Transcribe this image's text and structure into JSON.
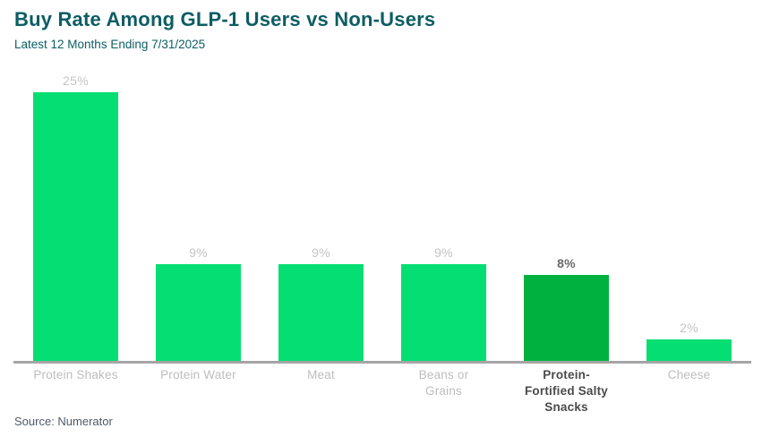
{
  "header": {
    "title": "Buy Rate Among GLP-1 Users vs Non-Users",
    "subtitle": "Latest 12 Months Ending 7/31/2025"
  },
  "footer": {
    "source": "Source: Numerator"
  },
  "colors": {
    "title_text": "#0D5D64",
    "bar_default": "#05DE72",
    "bar_emphasis": "#00B140",
    "value_label_muted": "#C4C4C4",
    "value_label_emphasis": "#6B6B6B",
    "category_label_muted": "#BDBDBD",
    "category_label_emphasis": "#4A4A4A",
    "axis_line": "#A5A5A5",
    "source_text": "#4F5A68",
    "background": "#FFFFFF"
  },
  "chart_data": {
    "type": "bar",
    "title": "Buy Rate Among GLP-1 Users vs Non-Users",
    "subtitle": "Latest 12 Months Ending 7/31/2025",
    "categories": [
      "Protein Shakes",
      "Protein Water",
      "Meat",
      "Beans or Grains",
      "Protein-Fortified Salty Snacks",
      "Cheese"
    ],
    "values": [
      25,
      9,
      9,
      9,
      8,
      2
    ],
    "value_labels": [
      "25%",
      "9%",
      "9%",
      "9%",
      "8%",
      "2%"
    ],
    "unit": "%",
    "emphasized_index": 4,
    "ylim": [
      0,
      25
    ],
    "grid": false,
    "legend": false,
    "y_axis_visible": false,
    "x_axis_line": true,
    "source": "Source: Numerator"
  }
}
